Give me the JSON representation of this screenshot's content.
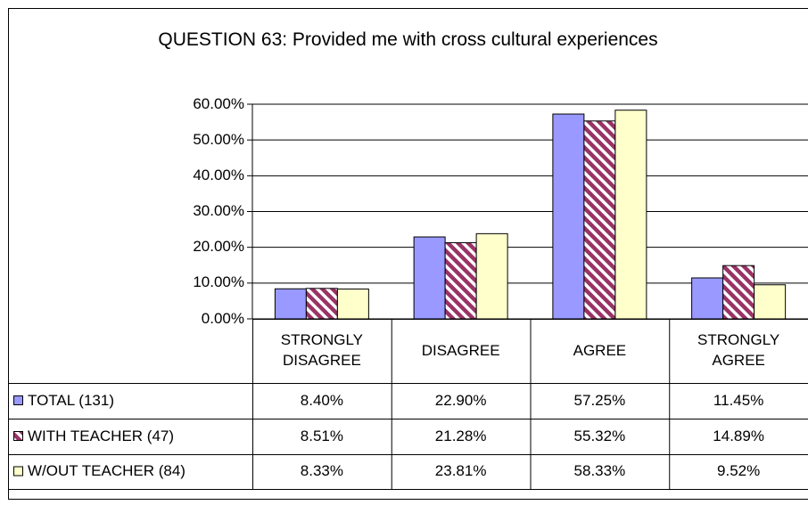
{
  "chart_data": {
    "type": "bar",
    "title": "QUESTION 63: Provided me with cross cultural experiences",
    "categories": [
      "STRONGLY DISAGREE",
      "DISAGREE",
      "AGREE",
      "STRONGLY AGREE"
    ],
    "series": [
      {
        "name": "TOTAL (131)",
        "color": "#9999ff",
        "values": [
          8.4,
          22.9,
          57.25,
          11.45
        ],
        "value_labels": [
          "8.40%",
          "22.90%",
          "57.25%",
          "11.45%"
        ]
      },
      {
        "name": "WITH TEACHER (47)",
        "color": "#993366",
        "pattern": "diagonal-stripes",
        "values": [
          8.51,
          21.28,
          55.32,
          14.89
        ],
        "value_labels": [
          "8.51%",
          "21.28%",
          "55.32%",
          "14.89%"
        ]
      },
      {
        "name": "W/OUT TEACHER (84)",
        "color": "#ffffcc",
        "values": [
          8.33,
          23.81,
          58.33,
          9.52
        ],
        "value_labels": [
          "8.33%",
          "23.81%",
          "58.33%",
          "9.52%"
        ]
      }
    ],
    "ylim": [
      0,
      60
    ],
    "yticks": [
      {
        "value": 0,
        "label": "0.00%"
      },
      {
        "value": 10,
        "label": "10.00%"
      },
      {
        "value": 20,
        "label": "20.00%"
      },
      {
        "value": 30,
        "label": "30.00%"
      },
      {
        "value": 40,
        "label": "40.00%"
      },
      {
        "value": 50,
        "label": "50.00%"
      },
      {
        "value": 60,
        "label": "60.00%"
      }
    ],
    "grid": true
  }
}
